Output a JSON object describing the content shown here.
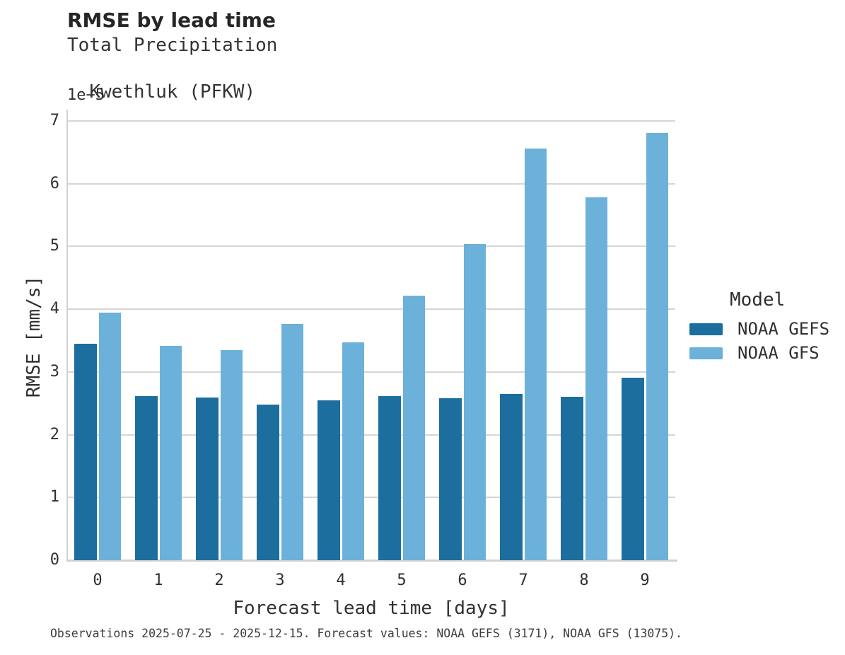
{
  "header": {
    "title": "RMSE by lead time",
    "subtitle_line1": "Total Precipitation",
    "subtitle_line2": "Kwethluk (PFKW)"
  },
  "axes": {
    "offset_text": "1e−5",
    "ylabel": "RMSE [mm/s]",
    "xlabel": "Forecast lead time [days]"
  },
  "legend": {
    "title": "Model",
    "entries": [
      {
        "label": "NOAA GEFS",
        "color": "#1b6e9d"
      },
      {
        "label": "NOAA GFS",
        "color": "#6cb1d9"
      }
    ]
  },
  "footer": {
    "note": "Observations 2025-07-25 - 2025-12-15. Forecast values: NOAA GEFS (3171), NOAA GFS (13075)."
  },
  "colors": {
    "series_dark": "#1b6e9d",
    "series_light": "#6cb1d9",
    "gridline": "#d6d6d6",
    "spine": "#d2d2d2",
    "text": "#303030"
  },
  "chart_data": {
    "type": "bar",
    "title": "RMSE by lead time",
    "subtitle": "Total Precipitation — Kwethluk (PFKW)",
    "xlabel": "Forecast lead time [days]",
    "ylabel": "RMSE [mm/s]",
    "value_units": "1e-5 mm/s",
    "categories": [
      "0",
      "1",
      "2",
      "3",
      "4",
      "5",
      "6",
      "7",
      "8",
      "9"
    ],
    "series": [
      {
        "name": "NOAA GEFS",
        "color": "#1b6e9d",
        "values": [
          3.45,
          2.62,
          2.59,
          2.48,
          2.55,
          2.62,
          2.58,
          2.65,
          2.6,
          2.91
        ]
      },
      {
        "name": "NOAA GFS",
        "color": "#6cb1d9",
        "values": [
          3.95,
          3.41,
          3.35,
          3.76,
          3.47,
          4.21,
          5.04,
          6.56,
          5.78,
          6.81
        ]
      }
    ],
    "yticks": [
      0,
      1,
      2,
      3,
      4,
      5,
      6,
      7
    ],
    "ylim": [
      0,
      7.18
    ],
    "grid": true,
    "legend_position": "right",
    "footnote": "Observations 2025-07-25 - 2025-12-15. Forecast values: NOAA GEFS (3171), NOAA GFS (13075)."
  }
}
